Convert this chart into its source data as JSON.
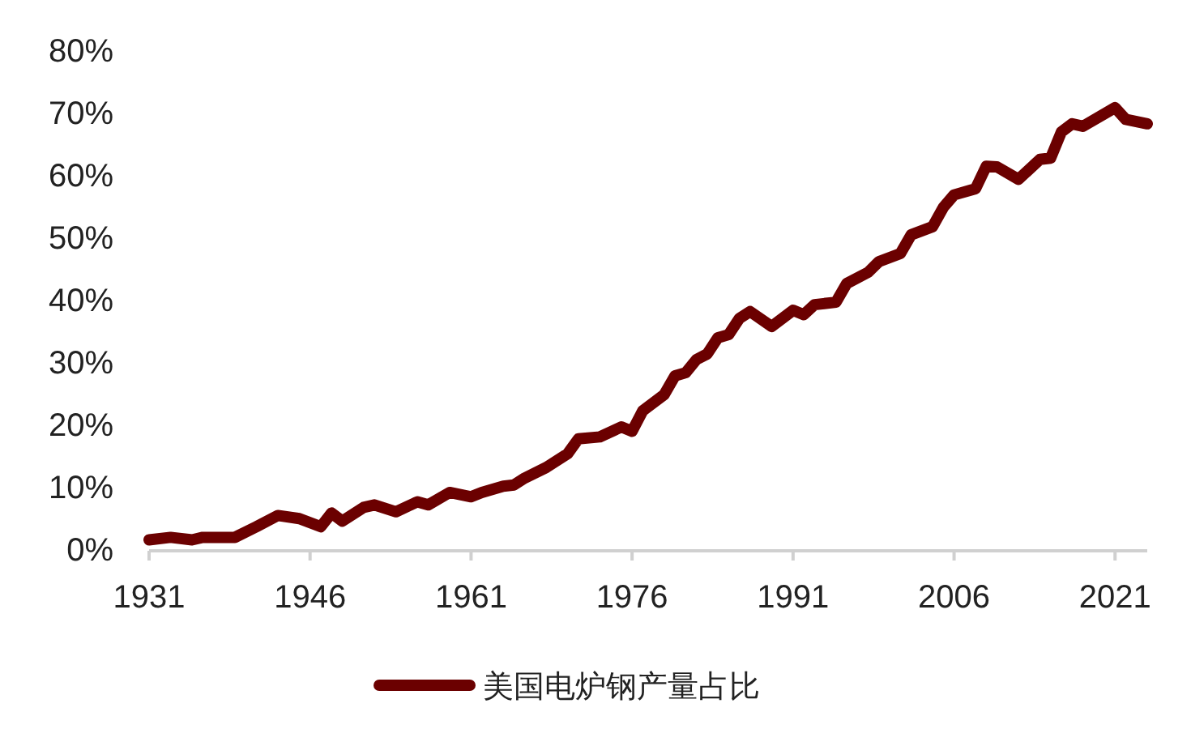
{
  "chart_data": {
    "type": "line",
    "x": [
      1931,
      1933,
      1935,
      1936,
      1939,
      1941,
      1943,
      1945,
      1947,
      1948,
      1949,
      1951,
      1952,
      1954,
      1956,
      1957,
      1959,
      1961,
      1962,
      1964,
      1965,
      1966,
      1968,
      1970,
      1971,
      1973,
      1975,
      1976,
      1977,
      1979,
      1980,
      1981,
      1982,
      1983,
      1984,
      1985,
      1986,
      1987,
      1989,
      1991,
      1992,
      1993,
      1995,
      1996,
      1998,
      1999,
      2001,
      2002,
      2004,
      2005,
      2006,
      2008,
      2009,
      2010,
      2012,
      2014,
      2015,
      2016,
      2017,
      2018,
      2021,
      2022,
      2024
    ],
    "series": [
      {
        "name": "美国电炉钢产量占比",
        "color": "#6b0000",
        "line_style": "solid",
        "values": [
          1.5,
          1.9,
          1.5,
          1.9,
          1.9,
          3.6,
          5.4,
          4.9,
          3.6,
          5.8,
          4.5,
          6.7,
          7.1,
          6.0,
          7.6,
          7.1,
          9.1,
          8.4,
          9.1,
          10.1,
          10.3,
          11.4,
          13.1,
          15.3,
          17.7,
          18.0,
          19.6,
          18.9,
          22.2,
          24.8,
          27.8,
          28.3,
          30.4,
          31.3,
          33.9,
          34.4,
          37.0,
          38.1,
          35.7,
          38.3,
          37.6,
          39.2,
          39.6,
          42.6,
          44.4,
          46.1,
          47.4,
          50.4,
          51.7,
          54.8,
          56.8,
          57.8,
          61.4,
          61.3,
          59.3,
          62.5,
          62.7,
          66.9,
          68.2,
          67.8,
          70.8,
          68.9,
          68.2
        ]
      }
    ],
    "xlim": [
      1931,
      2024
    ],
    "xticks": [
      1931,
      1946,
      1961,
      1976,
      1991,
      2006,
      2021
    ],
    "ylim": [
      0,
      80
    ],
    "yticks": [
      {
        "value": 0,
        "label": "0%"
      },
      {
        "value": 10,
        "label": "10%"
      },
      {
        "value": 20,
        "label": "20%"
      },
      {
        "value": 30,
        "label": "30%"
      },
      {
        "value": 40,
        "label": "40%"
      },
      {
        "value": 50,
        "label": "50%"
      },
      {
        "value": 60,
        "label": "60%"
      },
      {
        "value": 70,
        "label": "70%"
      },
      {
        "value": 80,
        "label": "80%"
      }
    ],
    "legend": "bottom"
  }
}
